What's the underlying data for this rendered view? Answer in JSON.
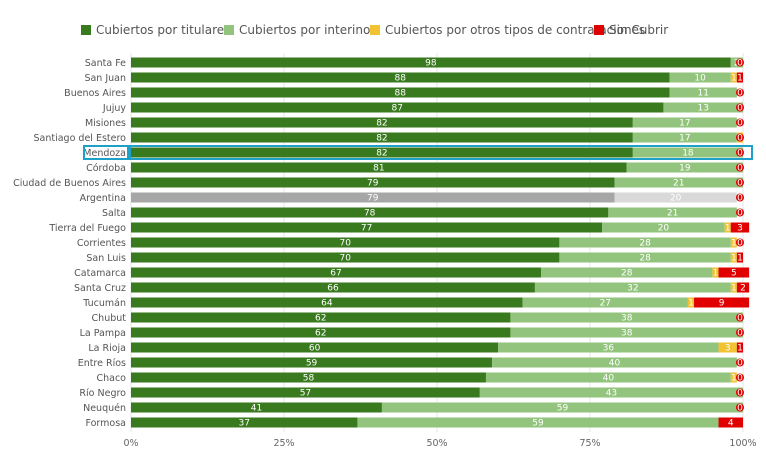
{
  "chart_data": {
    "type": "bar",
    "orientation": "horizontal",
    "stacked": "percent",
    "categories": [
      "Santa Fe",
      "San Juan",
      "Buenos Aires",
      "Jujuy",
      "Misiones",
      "Santiago del Estero",
      "Mendoza",
      "Córdoba",
      "Ciudad de Buenos Aires",
      "Argentina",
      "Salta",
      "Tierra del Fuego",
      "Corrientes",
      "San Luis",
      "Catamarca",
      "Santa Cruz",
      "Tucumán",
      "Chubut",
      "La Pampa",
      "La Rioja",
      "Entre Ríos",
      "Chaco",
      "Río Negro",
      "Neuquén",
      "Formosa"
    ],
    "series": [
      {
        "name": "Cubiertos por titulares",
        "color": "#3a7a1f",
        "values": [
          98,
          88,
          88,
          87,
          82,
          82,
          82,
          81,
          79,
          79,
          78,
          77,
          70,
          70,
          67,
          66,
          64,
          62,
          62,
          60,
          59,
          58,
          57,
          41,
          37
        ]
      },
      {
        "name": "Cubiertos por interinos",
        "color": "#93c47d",
        "values": [
          2,
          10,
          11,
          13,
          17,
          17,
          18,
          19,
          21,
          20,
          21,
          20,
          28,
          28,
          28,
          32,
          27,
          38,
          38,
          36,
          40,
          40,
          43,
          59,
          59
        ]
      },
      {
        "name": "Cubiertos por otros tipos de contrataciones",
        "color": "#f1c232",
        "values": [
          0,
          1,
          0,
          0,
          0,
          1,
          0,
          0,
          0,
          0,
          0,
          1,
          1,
          1,
          1,
          1,
          1,
          0,
          0,
          3,
          0,
          1,
          0,
          0,
          0
        ]
      },
      {
        "name": "Sin Cubrir",
        "color": "#e00000",
        "values": [
          0,
          1,
          0,
          0,
          0,
          0,
          0,
          0,
          0,
          0,
          0,
          3,
          0,
          1,
          5,
          2,
          9,
          0,
          0,
          1,
          0,
          0,
          0,
          0,
          4
        ]
      }
    ],
    "xlim": [
      0,
      100
    ],
    "xticks": [
      "0%",
      "25%",
      "50%",
      "75%",
      "100%"
    ],
    "legend_position": "top",
    "highlighted_category": "Mendoza",
    "highlight_color": "#1fa0c8",
    "average_category": "Argentina",
    "average_colors": [
      "#a6a6a6",
      "#d9d9d9",
      "#f2f2f2",
      "#f2f2f2"
    ]
  }
}
